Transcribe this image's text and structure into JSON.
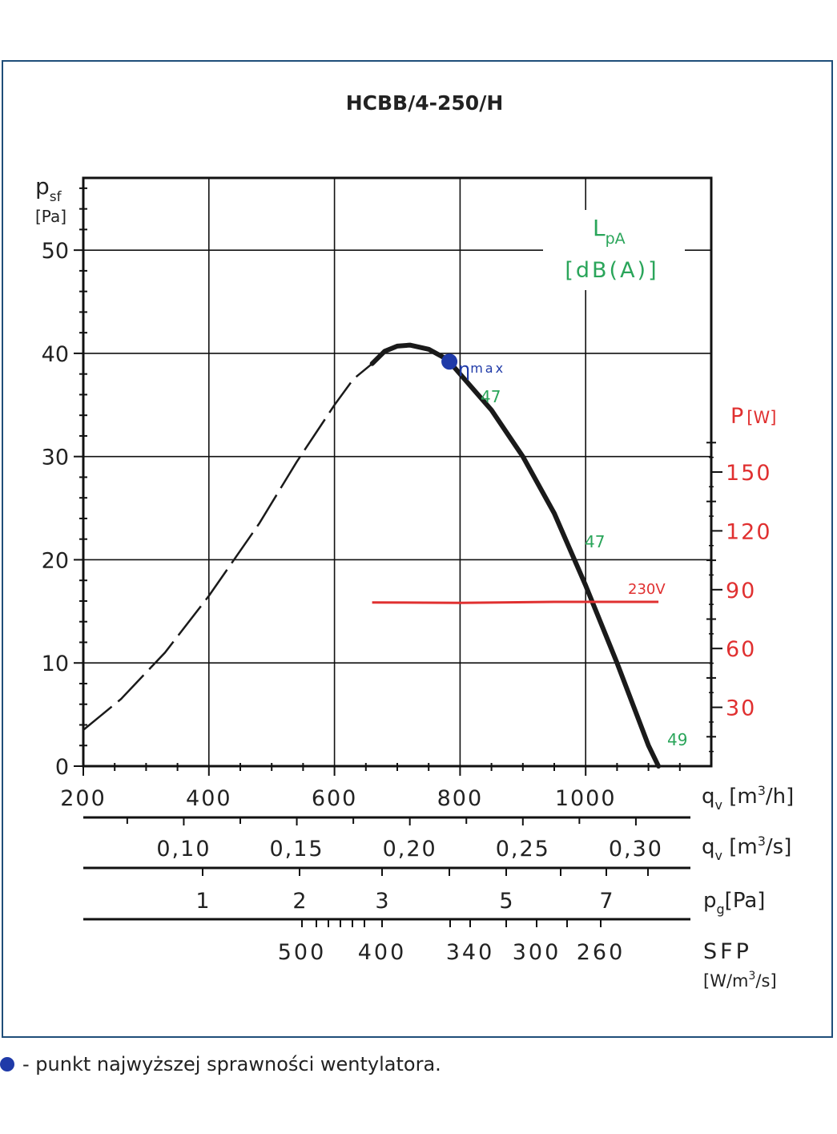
{
  "chart_data": {
    "type": "line",
    "title": "HCBB/4-250/H",
    "y_axis": {
      "label_main": "p",
      "label_sub": "sf",
      "unit": "[Pa]",
      "ylim": [
        0,
        57
      ],
      "ticks": [
        "0",
        "10",
        "20",
        "30",
        "40",
        "50"
      ]
    },
    "x_axis": {
      "label": "q",
      "label_sub": "v",
      "unit": "[m",
      "unit_sup": "3",
      "unit_end": "/h]",
      "xlim": [
        200,
        1200
      ],
      "ticks": [
        "200",
        "400",
        "600",
        "800",
        "1000"
      ]
    },
    "secondary_scales": {
      "flow_m3s": {
        "label": "q",
        "label_sub": "v",
        "unit": "[m",
        "unit_sup": "3",
        "unit_end": "/s]",
        "ticks": [
          "0,10",
          "0,15",
          "0,20",
          "0,25",
          "0,30"
        ],
        "values": [
          0.1,
          0.15,
          0.2,
          0.25,
          0.3
        ]
      },
      "pg": {
        "label": "p",
        "label_sub": "g",
        "unit": "[Pa]",
        "ticks": [
          "1",
          "2",
          "3",
          "5",
          "7"
        ],
        "values": [
          1,
          2,
          3,
          5,
          7
        ]
      },
      "sfp": {
        "label": "SFP",
        "unit": "[W/m",
        "unit_sup": "3",
        "unit_end": "/s]",
        "ticks": [
          "500",
          "400",
          "340",
          "300",
          "260"
        ],
        "values": [
          500,
          400,
          340,
          300,
          260
        ]
      }
    },
    "power_axis": {
      "label": "P",
      "unit": "[W]",
      "ticks": [
        "30",
        "60",
        "90",
        "120",
        "150"
      ],
      "values": [
        30,
        60,
        90,
        120,
        150
      ]
    },
    "sound_label": {
      "main": "L",
      "sub": "pA",
      "unit": "[dB(A)]"
    },
    "series": [
      {
        "style": "dashed",
        "points": [
          [
            200,
            3.5
          ],
          [
            260,
            6.5
          ],
          [
            330,
            11.0
          ],
          [
            400,
            16.5
          ],
          [
            480,
            23.5
          ],
          [
            540,
            29.5
          ],
          [
            600,
            35.0
          ],
          [
            630,
            37.5
          ],
          [
            660,
            39.0
          ]
        ]
      },
      {
        "style": "solid",
        "points": [
          [
            660,
            39.0
          ],
          [
            680,
            40.2
          ],
          [
            700,
            40.7
          ],
          [
            720,
            40.8
          ],
          [
            750,
            40.4
          ],
          [
            780,
            39.4
          ],
          [
            800,
            38.0
          ],
          [
            850,
            34.5
          ],
          [
            900,
            30.0
          ],
          [
            950,
            24.5
          ],
          [
            1000,
            17.5
          ],
          [
            1050,
            10.0
          ],
          [
            1100,
            2.0
          ],
          [
            1116,
            0
          ]
        ]
      }
    ],
    "power_series": {
      "label": "230V",
      "color": "#e03030",
      "points": [
        [
          660,
          83.5
        ],
        [
          800,
          83.3
        ],
        [
          950,
          83.8
        ],
        [
          1116,
          83.8
        ]
      ]
    },
    "eta_max": {
      "x": 783,
      "y": 39.2,
      "label": "η",
      "label_sub": "max"
    },
    "sound_points": [
      {
        "x": 800,
        "y": 37.5,
        "value": "47"
      },
      {
        "x": 990,
        "y": 22.0,
        "value": "47"
      },
      {
        "x": 1100,
        "y": 2.0,
        "value": "49"
      }
    ],
    "colors": {
      "curve": "#1a1a1a",
      "power": "#e03030",
      "sound": "#2aa55a",
      "eta": "#1f3aa8",
      "grid": "#111111",
      "frame": "#1f4e79"
    }
  },
  "footnote": "- punkt najwyższej sprawności wentylatora."
}
